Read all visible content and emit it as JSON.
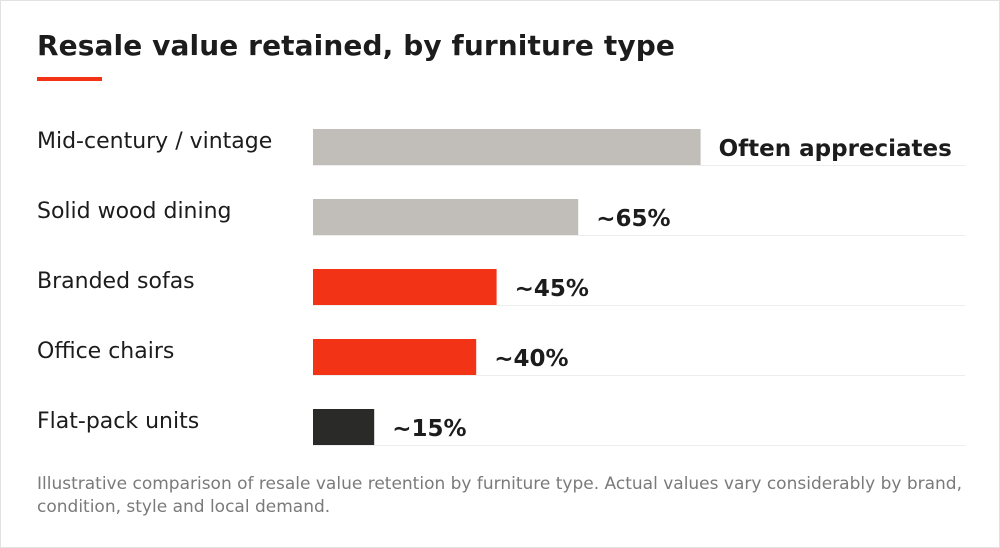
{
  "chart_data": {
    "type": "bar",
    "orientation": "horizontal",
    "title": "Resale value retained, by furniture type",
    "categories": [
      "Mid-century / vintage",
      "Solid wood dining",
      "Branded sofas",
      "Office chairs",
      "Flat-pack units"
    ],
    "values": [
      null,
      65,
      45,
      40,
      15
    ],
    "bar_values_shown_as_length_percent": [
      95,
      65,
      45,
      40,
      15
    ],
    "value_labels": [
      "Often appreciates",
      "~65%",
      "~45%",
      "~40%",
      "~15%"
    ],
    "bar_colors": [
      "#c1bdb9",
      "#c1bdb9",
      "#f23316",
      "#f23316",
      "#2a2a28"
    ],
    "xlim": [
      0,
      100
    ],
    "xlabel": "",
    "ylabel": "",
    "grid": "faint horizontal baselines under each bar",
    "legend": "none"
  },
  "footnote": "Illustrative comparison of resale value retention by furniture type. Actual values vary considerably by brand, condition, style and local demand.",
  "colors": {
    "accent": "#f23316",
    "neutral": "#c1bdb9",
    "dark": "#2a2a28",
    "text": "#1c1c1c",
    "muted": "#7a7a7a"
  }
}
